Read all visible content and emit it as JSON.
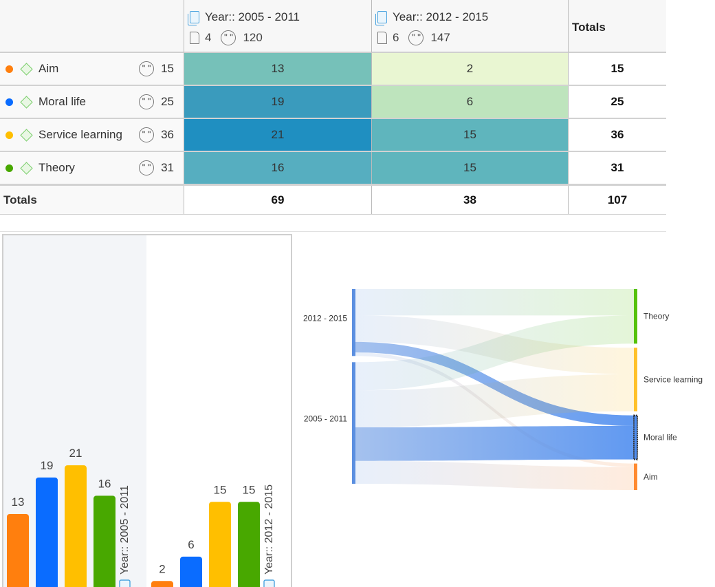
{
  "crosstab": {
    "corner": "",
    "columns": [
      {
        "title": "Year:: 2005 - 2011",
        "documents": "4",
        "quotations": "120"
      },
      {
        "title": "Year:: 2012 - 2015",
        "documents": "6",
        "quotations": "147"
      }
    ],
    "totals_label": "Totals",
    "rows": [
      {
        "name": "Aim",
        "color": "#ff7f0e",
        "count": "15",
        "v1": "13",
        "v2": "2",
        "total": "15",
        "bg1": "#76c1b9",
        "bg2": "#e9f6d2"
      },
      {
        "name": "Moral life",
        "color": "#0a6cff",
        "count": "25",
        "v1": "19",
        "v2": "6",
        "total": "25",
        "bg1": "#3a9bbd",
        "bg2": "#bee4bd"
      },
      {
        "name": "Service learning",
        "color": "#ffbf00",
        "count": "36",
        "v1": "21",
        "v2": "15",
        "total": "36",
        "bg1": "#1f8fc1",
        "bg2": "#5fb5bd"
      },
      {
        "name": "Theory",
        "color": "#48a800",
        "count": "31",
        "v1": "16",
        "v2": "15",
        "total": "31",
        "bg1": "#56aec0",
        "bg2": "#5fb5bd"
      }
    ],
    "totals_row": {
      "label": "Totals",
      "v1": "69",
      "v2": "38",
      "total": "107"
    }
  },
  "chart_data": [
    {
      "type": "bar",
      "categories": [
        "Year:: 2005 - 2011",
        "Year:: 2012 - 2015"
      ],
      "series": [
        {
          "name": "Aim",
          "color": "#ff7f0e",
          "values": [
            13,
            2
          ]
        },
        {
          "name": "Moral life",
          "color": "#0a6cff",
          "values": [
            19,
            6
          ]
        },
        {
          "name": "Service learning",
          "color": "#ffbf00",
          "values": [
            21,
            15
          ]
        },
        {
          "name": "Theory",
          "color": "#48a800",
          "values": [
            16,
            15
          ]
        }
      ],
      "ylim": [
        0,
        25
      ],
      "grid": false,
      "value_labels": true
    },
    {
      "type": "sankey",
      "sources": [
        {
          "name": "2012 - 2015",
          "color": "#5b8fe0"
        },
        {
          "name": "2005 - 2011",
          "color": "#5b8fe0"
        }
      ],
      "targets": [
        {
          "name": "Theory",
          "color": "#55c20a"
        },
        {
          "name": "Service learning",
          "color": "#ffc12a"
        },
        {
          "name": "Moral life",
          "color": "#4f8ef0"
        },
        {
          "name": "Aim",
          "color": "#ff8a30"
        }
      ],
      "links": [
        {
          "source": "2012 - 2015",
          "target": "Theory",
          "value": 15
        },
        {
          "source": "2012 - 2015",
          "target": "Service learning",
          "value": 15
        },
        {
          "source": "2012 - 2015",
          "target": "Moral life",
          "value": 6
        },
        {
          "source": "2012 - 2015",
          "target": "Aim",
          "value": 2
        },
        {
          "source": "2005 - 2011",
          "target": "Theory",
          "value": 16
        },
        {
          "source": "2005 - 2011",
          "target": "Service learning",
          "value": 21
        },
        {
          "source": "2005 - 2011",
          "target": "Moral life",
          "value": 19
        },
        {
          "source": "2005 - 2011",
          "target": "Aim",
          "value": 13
        }
      ],
      "highlighted_target": "Moral life"
    }
  ]
}
